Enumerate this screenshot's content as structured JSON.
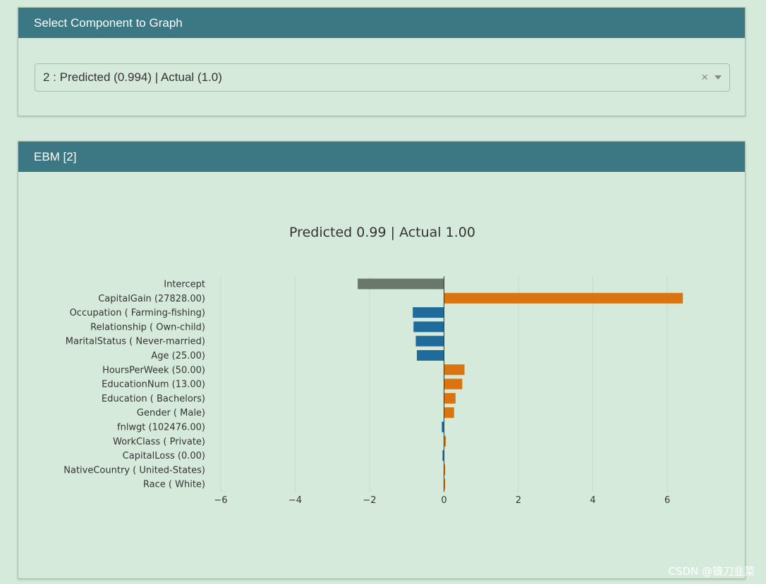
{
  "select_panel": {
    "title": "Select Component to Graph",
    "selected_value": "2 : Predicted (0.994) | Actual (1.0)",
    "clear_glyph": "×"
  },
  "ebm_panel": {
    "title": "EBM [2]"
  },
  "colors": {
    "header": "#3c7884",
    "positive": "#d97410",
    "negative": "#1f6c9c",
    "intercept": "#6a776b"
  },
  "chart_data": {
    "type": "bar",
    "orientation": "horizontal",
    "title": "Predicted 0.99 | Actual 1.00",
    "xlabel": "",
    "ylabel": "",
    "xlim": [
      -6.0,
      6.0
    ],
    "xticks": [
      -6,
      -4,
      -2,
      0,
      2,
      4,
      6
    ],
    "xtick_labels": [
      "−6",
      "−4",
      "−2",
      "0",
      "2",
      "4",
      "6"
    ],
    "grid": true,
    "categories": [
      "Intercept",
      "CapitalGain (27828.00)",
      "Occupation ( Farming-fishing)",
      "Relationship ( Own-child)",
      "MaritalStatus ( Never-married)",
      "Age (25.00)",
      "HoursPerWeek (50.00)",
      "EducationNum (13.00)",
      "Education ( Bachelors)",
      "Gender ( Male)",
      "fnlwgt (102476.00)",
      "WorkClass ( Private)",
      "CapitalLoss (0.00)",
      "NativeCountry ( United-States)",
      "Race ( White)"
    ],
    "values": [
      -2.32,
      6.42,
      -0.84,
      -0.82,
      -0.76,
      -0.73,
      0.55,
      0.49,
      0.31,
      0.27,
      -0.06,
      0.05,
      -0.04,
      0.03,
      0.03
    ],
    "bar_kind": [
      "intercept",
      "feature",
      "feature",
      "feature",
      "feature",
      "feature",
      "feature",
      "feature",
      "feature",
      "feature",
      "feature",
      "feature",
      "feature",
      "feature",
      "feature"
    ]
  },
  "watermark": "CSDN @镰刀韭菜"
}
